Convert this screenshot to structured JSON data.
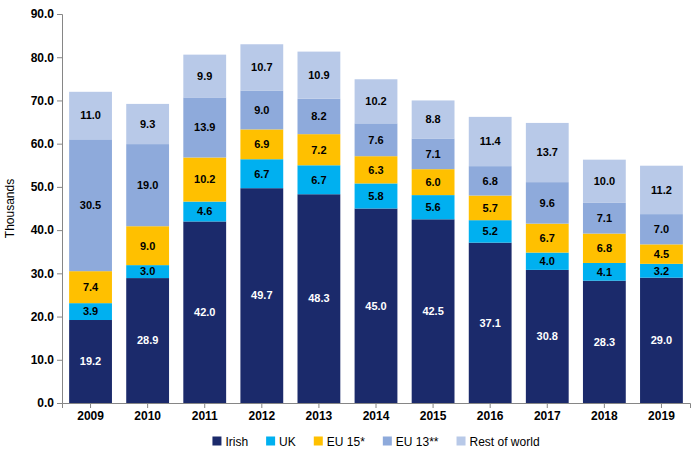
{
  "chart_data": {
    "type": "bar",
    "stacked": true,
    "data_labels": true,
    "grid": false,
    "legend": "bottom",
    "y_label": "Thousands",
    "categories": [
      "2009",
      "2010",
      "2011",
      "2012",
      "2013",
      "2014",
      "2015",
      "2016",
      "2017",
      "2018",
      "2019"
    ],
    "ylim": [
      0,
      90
    ],
    "yticks": [
      {
        "value": 0,
        "label": "0.0"
      },
      {
        "value": 10,
        "label": "10.0"
      },
      {
        "value": 20,
        "label": "20.0"
      },
      {
        "value": 30,
        "label": "30.0"
      },
      {
        "value": 40,
        "label": "40.0"
      },
      {
        "value": 50,
        "label": "50.0"
      },
      {
        "value": 60,
        "label": "60.0"
      },
      {
        "value": 70,
        "label": "70.0"
      },
      {
        "value": 80,
        "label": "80.0"
      },
      {
        "value": 90,
        "label": "90.0"
      }
    ],
    "series": [
      {
        "name": "Irish",
        "color": "#1b2a6b",
        "values": [
          19.2,
          28.9,
          42.0,
          49.7,
          48.3,
          45.0,
          42.5,
          37.1,
          30.8,
          28.3,
          29.0
        ],
        "value_labels": [
          "19.2",
          "28.9",
          "42.0",
          "49.7",
          "48.3",
          "45.0",
          "42.5",
          "37.1",
          "30.8",
          "28.3",
          "29.0"
        ]
      },
      {
        "name": "UK",
        "color": "#00b0f0",
        "values": [
          3.9,
          3.0,
          4.6,
          6.7,
          6.7,
          5.8,
          5.6,
          5.2,
          4.0,
          4.1,
          3.2
        ],
        "value_labels": [
          "3.9",
          "3.0",
          "4.6",
          "6.7",
          "6.7",
          "5.8",
          "5.6",
          "5.2",
          "4.0",
          "4.1",
          "3.2"
        ]
      },
      {
        "name": "EU 15*",
        "color": "#ffc000",
        "values": [
          7.4,
          9.0,
          10.2,
          6.9,
          7.2,
          6.3,
          6.0,
          5.7,
          6.7,
          6.8,
          4.5
        ],
        "value_labels": [
          "7.4",
          "9.0",
          "10.2",
          "6.9",
          "7.2",
          "6.3",
          "6.0",
          "5.7",
          "6.7",
          "6.8",
          "4.5"
        ]
      },
      {
        "name": "EU 13**",
        "color": "#8eaadb",
        "values": [
          30.5,
          19.0,
          13.9,
          9.0,
          8.2,
          7.6,
          7.1,
          6.8,
          9.6,
          7.1,
          7.0
        ],
        "value_labels": [
          "30.5",
          "19.0",
          "13.9",
          "9.0",
          "8.2",
          "7.6",
          "7.1",
          "6.8",
          "9.6",
          "7.1",
          "7.0"
        ]
      },
      {
        "name": "Rest of world",
        "color": "#b8c9e8",
        "values": [
          11.0,
          9.3,
          9.9,
          10.7,
          10.9,
          10.2,
          8.8,
          11.4,
          13.7,
          10.0,
          11.2
        ],
        "value_labels": [
          "11.0",
          "9.3",
          "9.9",
          "10.7",
          "10.9",
          "10.2",
          "8.8",
          "11.4",
          "13.7",
          "10.0",
          "11.2"
        ]
      }
    ]
  }
}
